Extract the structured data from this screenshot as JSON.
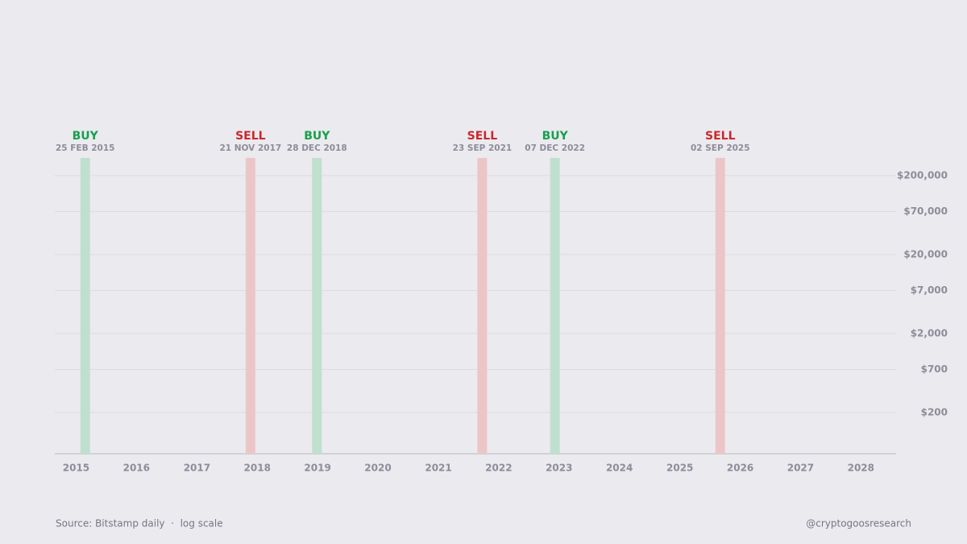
{
  "chart_data": {
    "type": "signal-bands",
    "y_scale": "log",
    "xlim": [
      "2014-08-25",
      "2028-08-01"
    ],
    "xticks": [
      2015,
      2016,
      2017,
      2018,
      2019,
      2020,
      2021,
      2022,
      2023,
      2024,
      2025,
      2026,
      2027,
      2028
    ],
    "ylim": [
      60,
      350000
    ],
    "yticks": [
      {
        "value": 200,
        "label": "$200"
      },
      {
        "value": 700,
        "label": "$700"
      },
      {
        "value": 2000,
        "label": "$2,000"
      },
      {
        "value": 7000,
        "label": "$7,000"
      },
      {
        "value": 20000,
        "label": "$20,000"
      },
      {
        "value": 70000,
        "label": "$70,000"
      },
      {
        "value": 200000,
        "label": "$200,000"
      }
    ],
    "grid": true,
    "signals": [
      {
        "name": "BUY",
        "date": "25 FEB 2015",
        "color": "#17a04c",
        "band_color": "#bfe0cf"
      },
      {
        "name": "SELL",
        "date": "21 NOV 2017",
        "color": "#c9282d",
        "band_color": "#ecc6c7"
      },
      {
        "name": "BUY",
        "date": "28 DEC 2018",
        "color": "#17a04c",
        "band_color": "#bfe0cf"
      },
      {
        "name": "SELL",
        "date": "23 SEP 2021",
        "color": "#c9282d",
        "band_color": "#ecc6c7"
      },
      {
        "name": "BUY",
        "date": "07 DEC 2022",
        "color": "#17a04c",
        "band_color": "#bfe0cf"
      },
      {
        "name": "SELL",
        "date": "02 SEP 2025",
        "color": "#c9282d",
        "band_color": "#ecc6c7"
      }
    ],
    "source": "Source: Bitstamp daily  ·  log scale",
    "credit": "@cryptogoosresearch"
  }
}
